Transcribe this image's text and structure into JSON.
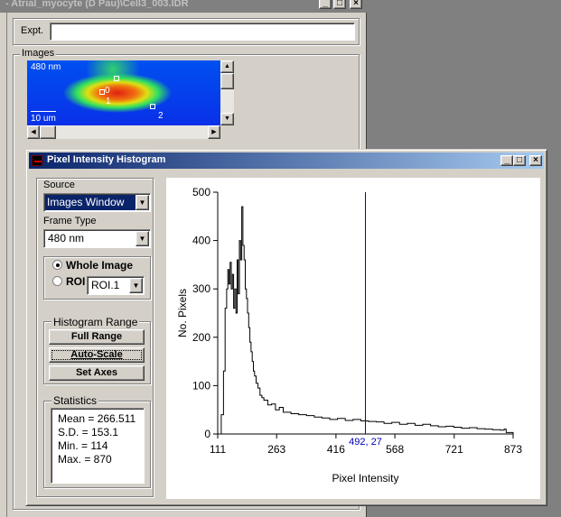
{
  "back_window": {
    "title": "- Atrial_myocyte (D Pau)\\Cell3_003.IDR",
    "expt_label": "Expt.",
    "expt_value": "",
    "images_label": "Images",
    "image_wavelength": "480 nm",
    "scale_bar": "10 um",
    "roi_labels": [
      "0",
      "1",
      "2"
    ]
  },
  "hist_window": {
    "title": "Pixel Intensity Histogram",
    "source_label": "Source",
    "source_value": "Images Window",
    "frame_type_label": "Frame Type",
    "frame_type_value": "480 nm",
    "whole_image_label": "Whole Image",
    "roi_label": "ROI",
    "roi_value": "ROI.1",
    "region_mode": "whole",
    "histogram_range_label": "Histogram Range",
    "full_range_label": "Full Range",
    "auto_scale_label": "Auto-Scale",
    "set_axes_label": "Set Axes",
    "statistics_label": "Statistics",
    "stats": [
      "Mean = 266.511",
      "S.D. = 153.1",
      "Min. = 114",
      "Max. = 870"
    ],
    "cursor_readout": "492, 27"
  },
  "chart_data": {
    "type": "line",
    "xlabel": "Pixel Intensity",
    "ylabel": "No. Pixels",
    "xlim": [
      111,
      873
    ],
    "ylim": [
      0,
      500
    ],
    "x_ticks": [
      111,
      263,
      416,
      568,
      721,
      873
    ],
    "y_ticks": [
      0,
      100,
      200,
      300,
      400,
      500
    ],
    "cursor_x": 492,
    "series": [
      {
        "x": [
          111,
          114,
          120,
          126,
          130,
          134,
          137,
          140,
          143,
          146,
          149,
          152,
          155,
          158,
          161,
          164,
          167,
          170,
          173,
          176,
          179,
          182,
          185,
          188,
          191,
          194,
          197,
          200,
          203,
          206,
          210,
          215,
          220,
          225,
          230,
          240,
          250,
          260,
          270,
          280,
          300,
          320,
          340,
          360,
          380,
          400,
          420,
          440,
          460,
          480,
          500,
          520,
          540,
          560,
          580,
          600,
          620,
          640,
          660,
          680,
          700,
          720,
          740,
          760,
          780,
          800,
          820,
          840,
          850,
          855,
          873
        ],
        "values": [
          0,
          0,
          40,
          130,
          260,
          300,
          340,
          310,
          355,
          300,
          330,
          260,
          300,
          250,
          360,
          290,
          400,
          360,
          470,
          390,
          360,
          300,
          280,
          250,
          220,
          190,
          170,
          150,
          130,
          120,
          105,
          95,
          80,
          75,
          70,
          60,
          62,
          50,
          55,
          45,
          42,
          40,
          38,
          35,
          33,
          30,
          32,
          28,
          30,
          27,
          26,
          25,
          22,
          24,
          20,
          22,
          18,
          20,
          17,
          15,
          16,
          14,
          12,
          13,
          11,
          10,
          9,
          8,
          10,
          3,
          0
        ]
      }
    ]
  }
}
